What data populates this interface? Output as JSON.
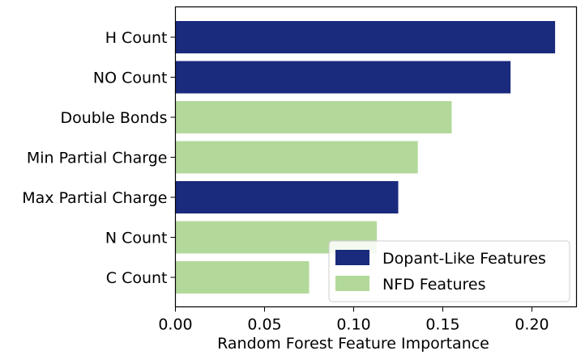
{
  "chart_data": {
    "type": "bar",
    "orientation": "horizontal",
    "title": "",
    "xlabel": "Random Forest Feature Importance",
    "ylabel": "",
    "xlim": [
      0,
      0.225
    ],
    "xticks": [
      0.0,
      0.05,
      0.1,
      0.15,
      0.2
    ],
    "xtick_labels": [
      "0.00",
      "0.05",
      "0.10",
      "0.15",
      "0.20"
    ],
    "grid": false,
    "legend_position": "lower-right",
    "categories": [
      "H Count",
      "NO Count",
      "Double Bonds",
      "Min Partial Charge",
      "Max Partial Charge",
      "N Count",
      "C Count"
    ],
    "values": [
      0.213,
      0.188,
      0.155,
      0.136,
      0.125,
      0.113,
      0.075
    ],
    "groups": [
      "dopant",
      "dopant",
      "nfd",
      "nfd",
      "dopant",
      "nfd",
      "nfd"
    ],
    "legend": [
      {
        "key": "dopant",
        "label": "Dopant-Like Features",
        "color": "#1a2a7c"
      },
      {
        "key": "nfd",
        "label": "NFD Features",
        "color": "#b3d99a"
      }
    ]
  }
}
